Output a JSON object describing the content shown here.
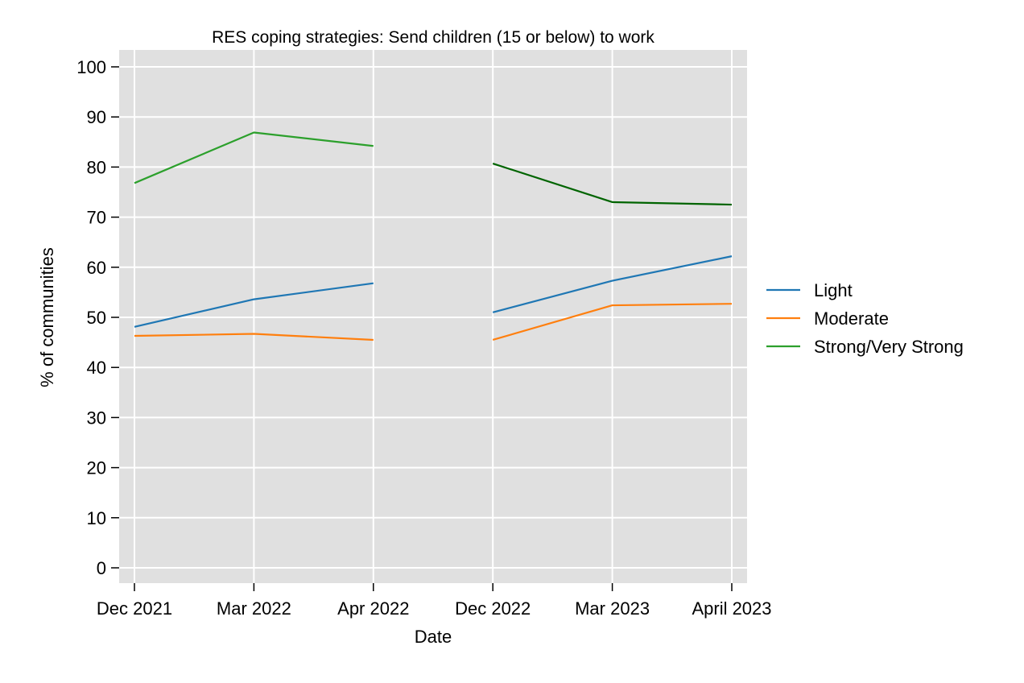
{
  "chart_data": {
    "type": "line",
    "title": "RES coping strategies: Send children (15 or below) to work",
    "xlabel": "Date",
    "ylabel": "% of communities",
    "categories": [
      "Dec 2021",
      "Mar 2022",
      "Apr 2022",
      "Dec 2022",
      "Mar 2023",
      "April 2023"
    ],
    "ylim": [
      0,
      100
    ],
    "yticks": [
      0,
      10,
      20,
      30,
      40,
      50,
      60,
      70,
      80,
      90,
      100
    ],
    "grid": true,
    "legend_position": "right",
    "series": [
      {
        "name": "Light",
        "color": "#1f77b4",
        "segments": [
          {
            "x": [
              "Dec 2021",
              "Mar 2022",
              "Apr 2022"
            ],
            "y": [
              48.1,
              53.6,
              56.8
            ]
          },
          {
            "x": [
              "Dec 2022",
              "Mar 2023",
              "April 2023"
            ],
            "y": [
              51.0,
              57.3,
              62.2
            ]
          }
        ]
      },
      {
        "name": "Moderate",
        "color": "#ff7f0e",
        "segments": [
          {
            "x": [
              "Dec 2021",
              "Mar 2022",
              "Apr 2022"
            ],
            "y": [
              46.3,
              46.7,
              45.5
            ]
          },
          {
            "x": [
              "Dec 2022",
              "Mar 2023",
              "April 2023"
            ],
            "y": [
              45.5,
              52.4,
              52.7
            ]
          }
        ]
      },
      {
        "name": "Strong/Very Strong",
        "color": "#2ca02c",
        "segments": [
          {
            "x": [
              "Dec 2021",
              "Mar 2022",
              "Apr 2022"
            ],
            "y": [
              76.8,
              86.9,
              84.2
            ],
            "color": "#2ca02c"
          },
          {
            "x": [
              "Dec 2022",
              "Mar 2023",
              "April 2023"
            ],
            "y": [
              80.7,
              73.0,
              72.5
            ],
            "color": "#006400"
          }
        ]
      }
    ]
  }
}
